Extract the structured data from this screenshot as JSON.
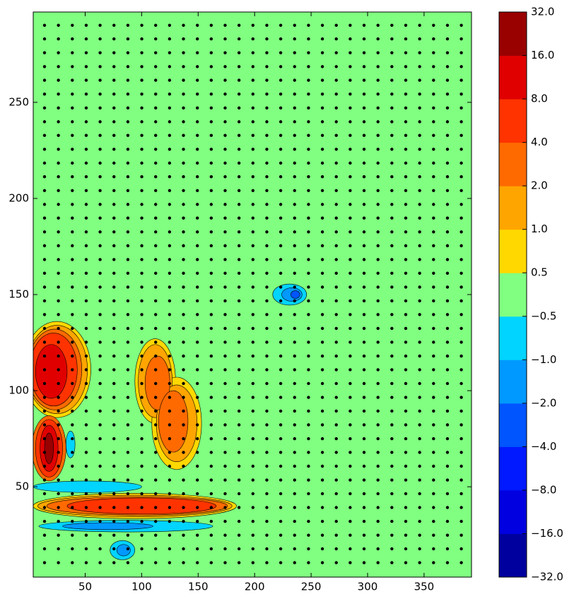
{
  "chart_data": {
    "type": "contourf",
    "xlim": [
      4,
      392
    ],
    "ylim": [
      3,
      297
    ],
    "xticks": [
      50,
      100,
      150,
      200,
      250,
      300,
      350
    ],
    "yticks": [
      50,
      100,
      150,
      200,
      250
    ],
    "background_value": 0,
    "levels": [
      {
        "value": -32,
        "label": "−32.0"
      },
      {
        "value": -16,
        "label": "−16.0"
      },
      {
        "value": -8,
        "label": "−8.0"
      },
      {
        "value": -4,
        "label": "−4.0"
      },
      {
        "value": -2,
        "label": "−2.0"
      },
      {
        "value": -1,
        "label": "−1.0"
      },
      {
        "value": -0.5,
        "label": "−0.5"
      },
      {
        "value": 0.5,
        "label": "0.5"
      },
      {
        "value": 1,
        "label": "1.0"
      },
      {
        "value": 2,
        "label": "2.0"
      },
      {
        "value": 4,
        "label": "4.0"
      },
      {
        "value": 8,
        "label": "8.0"
      },
      {
        "value": 16,
        "label": "16.0"
      },
      {
        "value": 32,
        "label": "32.0"
      }
    ],
    "colors": [
      "#00009f",
      "#0000e0",
      "#0019ff",
      "#0055ff",
      "#0099ff",
      "#00d4ff",
      "#80ff80",
      "#ffd800",
      "#ffa500",
      "#ff6a00",
      "#ff3300",
      "#e00000",
      "#990000"
    ],
    "regions": [
      {
        "x": 231,
        "y": 150,
        "rx": 15,
        "ry": 5.5,
        "value": -0.75
      },
      {
        "x": 233,
        "y": 150,
        "rx": 9,
        "ry": 3.5,
        "value": -1.5
      },
      {
        "x": 236,
        "y": 150,
        "rx": 4,
        "ry": 2,
        "value": -3
      },
      {
        "x": 83,
        "y": 17,
        "rx": 11,
        "ry": 5,
        "value": -0.75
      },
      {
        "x": 84,
        "y": 17,
        "rx": 6,
        "ry": 3,
        "value": -1.5
      },
      {
        "x": 52,
        "y": 50,
        "rx": 48,
        "ry": 3,
        "value": -0.75
      },
      {
        "x": 86,
        "y": 29.5,
        "rx": 77,
        "ry": 3,
        "value": -0.75
      },
      {
        "x": 70,
        "y": 29.5,
        "rx": 40,
        "ry": 1.8,
        "value": -1.5
      },
      {
        "x": 37,
        "y": 72,
        "rx": 4,
        "ry": 7,
        "value": -0.75
      },
      {
        "x": 94,
        "y": 40,
        "rx": 90,
        "ry": 6.6,
        "value": 0.75
      },
      {
        "x": 94,
        "y": 40,
        "rx": 86,
        "ry": 5.6,
        "value": 1.5
      },
      {
        "x": 96,
        "y": 40,
        "rx": 80,
        "ry": 4.8,
        "value": 3
      },
      {
        "x": 100,
        "y": 40,
        "rx": 66,
        "ry": 4.2,
        "value": 6
      },
      {
        "x": 25,
        "y": 111,
        "rx": 30,
        "ry": 25,
        "value": 0.75
      },
      {
        "x": 25,
        "y": 111,
        "rx": 27,
        "ry": 23,
        "value": 1.5
      },
      {
        "x": 23,
        "y": 111,
        "rx": 24,
        "ry": 21,
        "value": 3
      },
      {
        "x": 22,
        "y": 111,
        "rx": 21,
        "ry": 19,
        "value": 6
      },
      {
        "x": 20,
        "y": 110,
        "rx": 14,
        "ry": 14,
        "value": 12
      },
      {
        "x": 18,
        "y": 70,
        "rx": 15,
        "ry": 17,
        "value": 3
      },
      {
        "x": 18,
        "y": 70,
        "rx": 12,
        "ry": 15,
        "value": 6
      },
      {
        "x": 18,
        "y": 70,
        "rx": 8,
        "ry": 12,
        "value": 12
      },
      {
        "x": 18,
        "y": 70,
        "rx": 4,
        "ry": 8,
        "value": 24
      },
      {
        "x": 112,
        "y": 105,
        "rx": 18,
        "ry": 22,
        "value": 0.75
      },
      {
        "x": 131,
        "y": 83,
        "rx": 22,
        "ry": 24,
        "value": 0.75
      },
      {
        "x": 112,
        "y": 105,
        "rx": 15,
        "ry": 19,
        "value": 1.5
      },
      {
        "x": 131,
        "y": 83,
        "rx": 18,
        "ry": 20,
        "value": 1.5
      },
      {
        "x": 114,
        "y": 104,
        "rx": 11,
        "ry": 14,
        "value": 3
      },
      {
        "x": 128,
        "y": 84,
        "rx": 13,
        "ry": 16,
        "value": 3
      }
    ],
    "dot_x": [
      14,
      26.3,
      38.6,
      50.9,
      63.2,
      75.5,
      87.8,
      100.1,
      112.4,
      124.7,
      137,
      149.3,
      161.6,
      173.9,
      186.2,
      198.5,
      210.8,
      223.1,
      235.4,
      247.7,
      260,
      272.3,
      284.6,
      296.9,
      309.2,
      321.5,
      333.8,
      346.1,
      358.4,
      370.7,
      383
    ],
    "dot_y": [
      10.5,
      17.7,
      24.8,
      32,
      39.2,
      46.4,
      53.5,
      60.7,
      67.9,
      75,
      82.2,
      89.4,
      96.5,
      103.7,
      110.9,
      118,
      125.2,
      132.4,
      139.6,
      146.7,
      153.9,
      161.1,
      168.2,
      175.4,
      182.6,
      189.8,
      196.9,
      204.1,
      211.3,
      218.4,
      225.6,
      232.8,
      239.9,
      247.1,
      254.3,
      261.5,
      268.6,
      275.8,
      283,
      290.1
    ]
  }
}
